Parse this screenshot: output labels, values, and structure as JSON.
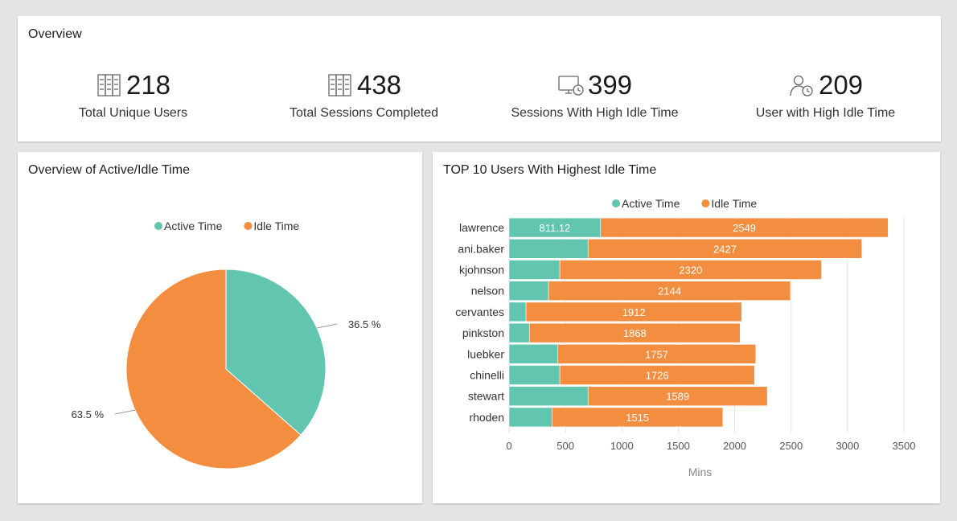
{
  "overview": {
    "title": "Overview",
    "kpis": [
      {
        "icon": "server-rack-icon",
        "value": "218",
        "label": "Total Unique Users"
      },
      {
        "icon": "server-rack-icon",
        "value": "438",
        "label": "Total Sessions Completed"
      },
      {
        "icon": "monitor-clock-icon",
        "value": "399",
        "label": "Sessions With High Idle Time"
      },
      {
        "icon": "user-clock-icon",
        "value": "209",
        "label": "User with High Idle Time"
      }
    ]
  },
  "colors": {
    "active": "#62c5b0",
    "idle": "#f38d3f"
  },
  "chart_data": [
    {
      "type": "pie",
      "title": "Overview of Active/Idle Time",
      "legend_position": "top-center",
      "labels": [
        "Active Time",
        "Idle Time"
      ],
      "values": [
        36.5,
        63.5
      ],
      "data_labels": [
        "36.5 %",
        "63.5 %"
      ]
    },
    {
      "type": "bar",
      "orientation": "horizontal",
      "stacked": true,
      "title": "TOP 10 Users With Highest Idle Time",
      "legend_position": "top-center",
      "categories": [
        "lawrence",
        "ani.baker",
        "kjohnson",
        "nelson",
        "cervantes",
        "pinkston",
        "luebker",
        "chinelli",
        "stewart",
        "rhoden"
      ],
      "series": [
        {
          "name": "Active Time",
          "values": [
            811.12,
            700,
            450,
            350,
            150,
            180,
            430,
            450,
            700,
            380
          ],
          "data_labels": [
            "811.12",
            "",
            "",
            "",
            "",
            "",
            "",
            "",
            "",
            ""
          ]
        },
        {
          "name": "Idle Time",
          "values": [
            2549,
            2427,
            2320,
            2144,
            1912,
            1868,
            1757,
            1726,
            1589,
            1515
          ],
          "data_labels": [
            "2549",
            "2427",
            "2320",
            "2144",
            "1912",
            "1868",
            "1757",
            "1726",
            "1589",
            "1515"
          ]
        }
      ],
      "xlabel": "Mins",
      "xlim": [
        0,
        3500
      ],
      "xticks": [
        0,
        500,
        1000,
        1500,
        2000,
        2500,
        3000,
        3500
      ],
      "grid": true
    }
  ]
}
